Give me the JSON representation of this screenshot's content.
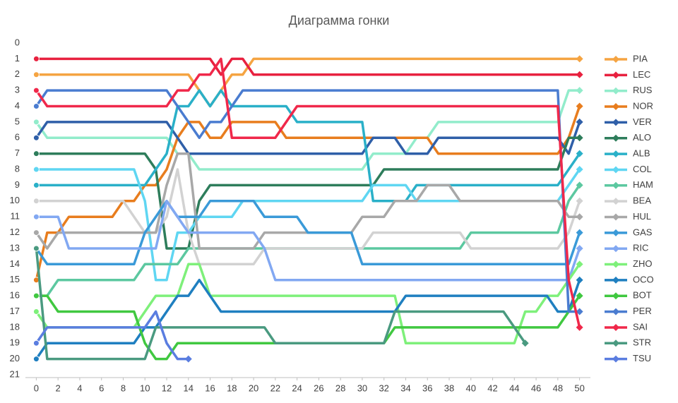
{
  "chart_data": {
    "type": "line",
    "title": "Диаграмма гонки",
    "x": [
      0,
      1,
      2,
      3,
      4,
      5,
      6,
      7,
      8,
      9,
      10,
      11,
      12,
      13,
      14,
      15,
      16,
      17,
      18,
      19,
      20,
      21,
      22,
      23,
      24,
      25,
      26,
      27,
      28,
      29,
      30,
      31,
      32,
      33,
      34,
      35,
      36,
      37,
      38,
      39,
      40,
      41,
      42,
      43,
      44,
      45,
      46,
      47,
      48,
      49,
      50
    ],
    "xlim": [
      -1,
      51
    ],
    "xticks": [
      0,
      2,
      4,
      6,
      8,
      10,
      12,
      14,
      16,
      18,
      20,
      22,
      24,
      26,
      28,
      30,
      32,
      34,
      36,
      38,
      40,
      42,
      44,
      46,
      48,
      50
    ],
    "ylim": [
      0,
      21
    ],
    "y_inverted": true,
    "yticks": [
      0,
      1,
      2,
      3,
      4,
      5,
      6,
      7,
      8,
      9,
      10,
      11,
      12,
      13,
      14,
      15,
      16,
      17,
      18,
      19,
      20,
      21
    ],
    "grid": false,
    "legend": "right",
    "series": [
      {
        "name": "PIA",
        "color": "#f5a442",
        "values": [
          2,
          2,
          2,
          2,
          2,
          2,
          2,
          2,
          2,
          2,
          2,
          2,
          2,
          2,
          2,
          3,
          4,
          3,
          2,
          2,
          1,
          1,
          1,
          1,
          1,
          1,
          1,
          1,
          1,
          1,
          1,
          1,
          1,
          1,
          1,
          1,
          1,
          1,
          1,
          1,
          1,
          1,
          1,
          1,
          1,
          1,
          1,
          1,
          1,
          1,
          1
        ]
      },
      {
        "name": "LEC",
        "color": "#e8213f",
        "values": [
          1,
          1,
          1,
          1,
          1,
          1,
          1,
          1,
          1,
          1,
          1,
          1,
          1,
          1,
          1,
          1,
          1,
          2,
          1,
          1,
          2,
          2,
          2,
          2,
          2,
          2,
          2,
          2,
          2,
          2,
          2,
          2,
          2,
          2,
          2,
          2,
          2,
          2,
          2,
          2,
          2,
          2,
          2,
          2,
          2,
          2,
          2,
          2,
          2,
          2,
          2
        ]
      },
      {
        "name": "RUS",
        "color": "#92eccb",
        "values": [
          5,
          6,
          6,
          6,
          6,
          6,
          6,
          6,
          6,
          6,
          6,
          6,
          6,
          7,
          7,
          8,
          8,
          8,
          8,
          8,
          8,
          8,
          8,
          8,
          8,
          8,
          8,
          8,
          8,
          8,
          8,
          7,
          7,
          7,
          7,
          6,
          6,
          5,
          5,
          5,
          5,
          5,
          5,
          5,
          5,
          5,
          5,
          5,
          5,
          3,
          3
        ]
      },
      {
        "name": "NOR",
        "color": "#e87d1e",
        "values": [
          15,
          12,
          12,
          11,
          11,
          11,
          11,
          11,
          10,
          10,
          9,
          9,
          8,
          6,
          5,
          5,
          6,
          6,
          5,
          5,
          5,
          5,
          5,
          6,
          6,
          6,
          6,
          6,
          6,
          6,
          6,
          6,
          6,
          6,
          6,
          6,
          6,
          7,
          7,
          7,
          7,
          7,
          7,
          7,
          7,
          7,
          7,
          7,
          7,
          6,
          4
        ]
      },
      {
        "name": "VER",
        "color": "#2f5fa8",
        "values": [
          6,
          5,
          5,
          5,
          5,
          5,
          5,
          5,
          5,
          5,
          5,
          5,
          5,
          6,
          7,
          7,
          7,
          7,
          7,
          7,
          7,
          7,
          7,
          7,
          7,
          7,
          7,
          7,
          7,
          7,
          7,
          6,
          6,
          6,
          7,
          7,
          7,
          6,
          6,
          6,
          6,
          6,
          6,
          6,
          6,
          6,
          6,
          6,
          6,
          7,
          5
        ]
      },
      {
        "name": "ALO",
        "color": "#2e7d5b",
        "values": [
          7,
          7,
          7,
          7,
          7,
          7,
          7,
          7,
          7,
          7,
          7,
          8,
          13,
          13,
          13,
          10,
          9,
          9,
          9,
          9,
          9,
          9,
          9,
          9,
          9,
          9,
          9,
          9,
          9,
          9,
          9,
          9,
          8,
          8,
          8,
          8,
          8,
          8,
          8,
          8,
          8,
          8,
          8,
          8,
          8,
          8,
          8,
          8,
          8,
          6,
          6
        ]
      },
      {
        "name": "ALB",
        "color": "#2ab0c8",
        "values": [
          9,
          9,
          9,
          9,
          9,
          9,
          9,
          9,
          9,
          9,
          9,
          8,
          7,
          4,
          4,
          3,
          4,
          3,
          4,
          4,
          4,
          4,
          4,
          4,
          5,
          5,
          5,
          5,
          5,
          5,
          5,
          10,
          10,
          10,
          10,
          9,
          9,
          9,
          9,
          9,
          9,
          9,
          9,
          9,
          9,
          9,
          9,
          9,
          9,
          8,
          7
        ]
      },
      {
        "name": "COL",
        "color": "#5fd6f2",
        "values": [
          8,
          8,
          8,
          8,
          8,
          8,
          8,
          8,
          8,
          8,
          10,
          15,
          15,
          12,
          12,
          11,
          11,
          11,
          11,
          10,
          10,
          10,
          10,
          10,
          10,
          10,
          10,
          10,
          10,
          10,
          10,
          9,
          9,
          9,
          9,
          10,
          10,
          10,
          10,
          10,
          10,
          10,
          10,
          10,
          10,
          10,
          10,
          10,
          10,
          9,
          8
        ]
      },
      {
        "name": "HAM",
        "color": "#5cc8a0",
        "values": [
          16,
          16,
          15,
          15,
          15,
          15,
          15,
          15,
          15,
          15,
          14,
          14,
          14,
          14,
          13,
          13,
          13,
          13,
          13,
          13,
          13,
          13,
          13,
          13,
          13,
          13,
          13,
          13,
          13,
          13,
          13,
          13,
          13,
          13,
          13,
          13,
          13,
          13,
          13,
          13,
          12,
          12,
          12,
          12,
          12,
          12,
          12,
          12,
          12,
          10,
          9
        ]
      },
      {
        "name": "BEA",
        "color": "#d2d2d2",
        "values": [
          10,
          10,
          10,
          10,
          10,
          10,
          10,
          10,
          10,
          11,
          12,
          12,
          11,
          8,
          12,
          14,
          14,
          14,
          14,
          14,
          14,
          13,
          13,
          13,
          13,
          13,
          13,
          13,
          13,
          13,
          13,
          12,
          12,
          12,
          12,
          12,
          12,
          12,
          12,
          12,
          13,
          13,
          13,
          13,
          13,
          13,
          13,
          13,
          13,
          12,
          10
        ]
      },
      {
        "name": "HUL",
        "color": "#a8a8a8",
        "values": [
          12,
          13,
          12,
          12,
          12,
          12,
          12,
          12,
          12,
          12,
          12,
          12,
          9,
          7,
          7,
          13,
          13,
          13,
          13,
          13,
          13,
          12,
          12,
          12,
          12,
          12,
          12,
          12,
          12,
          12,
          11,
          11,
          11,
          10,
          10,
          10,
          9,
          9,
          9,
          10,
          10,
          10,
          10,
          10,
          10,
          10,
          10,
          10,
          10,
          11,
          11
        ]
      },
      {
        "name": "GAS",
        "color": "#3a9ad8",
        "values": [
          13,
          14,
          14,
          14,
          14,
          14,
          14,
          14,
          14,
          14,
          12,
          11,
          10,
          11,
          11,
          11,
          10,
          10,
          10,
          10,
          10,
          11,
          11,
          11,
          11,
          12,
          12,
          12,
          12,
          12,
          14,
          14,
          14,
          14,
          14,
          14,
          14,
          14,
          14,
          14,
          14,
          14,
          14,
          14,
          14,
          14,
          14,
          14,
          14,
          14,
          12
        ]
      },
      {
        "name": "RIC",
        "color": "#82a8f2",
        "values": [
          11,
          11,
          11,
          13,
          13,
          13,
          13,
          13,
          13,
          13,
          13,
          13,
          10,
          11,
          12,
          12,
          12,
          12,
          12,
          12,
          12,
          13,
          15,
          15,
          15,
          15,
          15,
          15,
          15,
          15,
          15,
          15,
          15,
          15,
          15,
          15,
          15,
          15,
          15,
          15,
          15,
          15,
          15,
          15,
          15,
          15,
          15,
          15,
          15,
          15,
          13
        ]
      },
      {
        "name": "ZHO",
        "color": "#7ef07a",
        "values": [
          17,
          18,
          18,
          18,
          18,
          18,
          18,
          18,
          18,
          18,
          17,
          16,
          16,
          16,
          14,
          14,
          16,
          16,
          16,
          16,
          16,
          16,
          16,
          16,
          16,
          16,
          16,
          16,
          16,
          16,
          16,
          16,
          16,
          16,
          19,
          19,
          19,
          19,
          19,
          19,
          19,
          19,
          19,
          19,
          19,
          17,
          17,
          16,
          16,
          15,
          14
        ]
      },
      {
        "name": "OCO",
        "color": "#1f7fc0",
        "values": [
          20,
          19,
          19,
          19,
          19,
          19,
          19,
          19,
          19,
          19,
          18,
          18,
          17,
          16,
          16,
          15,
          16,
          17,
          17,
          17,
          17,
          17,
          17,
          17,
          17,
          17,
          17,
          17,
          17,
          17,
          17,
          17,
          17,
          17,
          16,
          16,
          16,
          16,
          16,
          16,
          16,
          16,
          16,
          16,
          16,
          16,
          16,
          16,
          17,
          17,
          15
        ]
      },
      {
        "name": "BOT",
        "color": "#40c840",
        "values": [
          16,
          16,
          17,
          17,
          17,
          17,
          17,
          17,
          17,
          17,
          19,
          20,
          20,
          19,
          19,
          19,
          19,
          19,
          19,
          19,
          19,
          19,
          19,
          19,
          19,
          19,
          19,
          19,
          19,
          19,
          19,
          19,
          19,
          18,
          18,
          18,
          18,
          18,
          18,
          18,
          18,
          18,
          18,
          18,
          18,
          18,
          18,
          18,
          18,
          17,
          16
        ]
      },
      {
        "name": "PER",
        "color": "#4a7cd0",
        "values": [
          4,
          3,
          3,
          3,
          3,
          3,
          3,
          3,
          3,
          3,
          3,
          3,
          3,
          4,
          5,
          6,
          5,
          5,
          4,
          3,
          3,
          3,
          3,
          3,
          3,
          3,
          3,
          3,
          3,
          3,
          3,
          3,
          3,
          3,
          3,
          3,
          3,
          3,
          3,
          3,
          3,
          3,
          3,
          3,
          3,
          3,
          3,
          3,
          3,
          17,
          17
        ]
      },
      {
        "name": "SAI",
        "color": "#f0284a",
        "values": [
          3,
          4,
          4,
          4,
          4,
          4,
          4,
          4,
          4,
          4,
          4,
          4,
          4,
          3,
          3,
          2,
          2,
          1,
          6,
          6,
          6,
          6,
          6,
          5,
          4,
          4,
          4,
          4,
          4,
          4,
          4,
          4,
          4,
          4,
          4,
          4,
          4,
          4,
          4,
          4,
          4,
          4,
          4,
          4,
          4,
          4,
          4,
          4,
          4,
          15,
          18
        ]
      },
      {
        "name": "STR",
        "color": "#4a9a80",
        "values": [
          13,
          20,
          20,
          20,
          20,
          20,
          20,
          20,
          20,
          20,
          20,
          18,
          18,
          18,
          18,
          18,
          18,
          18,
          18,
          18,
          18,
          18,
          19,
          19,
          19,
          19,
          19,
          19,
          19,
          19,
          19,
          19,
          19,
          17,
          17,
          17,
          17,
          17,
          17,
          17,
          17,
          17,
          17,
          17,
          18,
          19,
          null,
          null,
          null,
          null,
          null
        ]
      },
      {
        "name": "TSU",
        "color": "#5a7de0",
        "values": [
          19,
          18,
          18,
          18,
          18,
          18,
          18,
          18,
          18,
          18,
          18,
          17,
          19,
          20,
          20,
          null,
          null,
          null,
          null,
          null,
          null,
          null,
          null,
          null,
          null,
          null,
          null,
          null,
          null,
          null,
          null,
          null,
          null,
          null,
          null,
          null,
          null,
          null,
          null,
          null,
          null,
          null,
          null,
          null,
          null,
          null,
          null,
          null,
          null,
          null,
          null
        ]
      }
    ]
  }
}
